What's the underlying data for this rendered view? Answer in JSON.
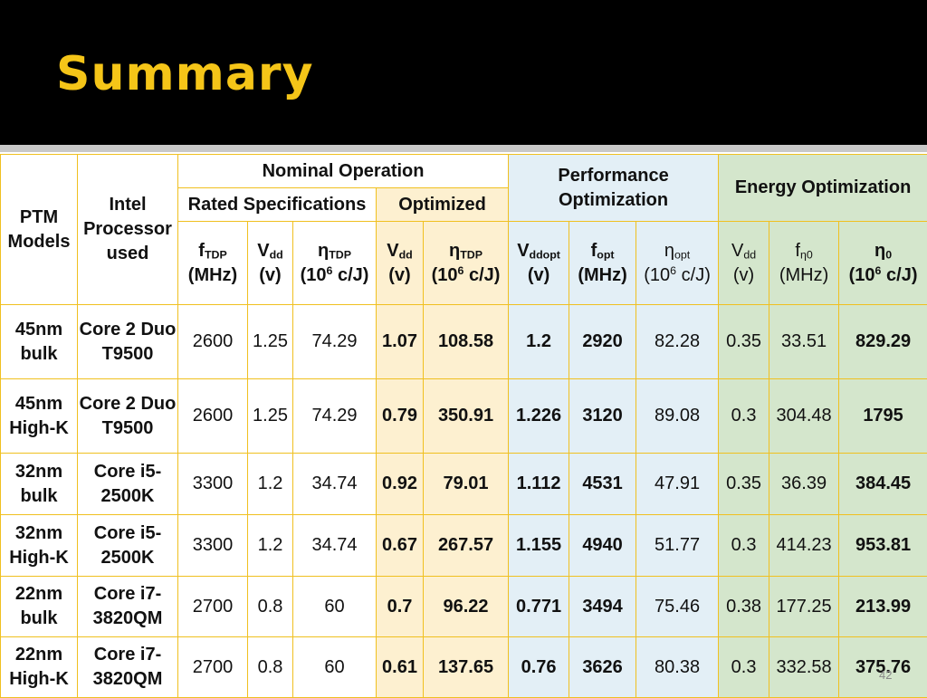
{
  "slide": {
    "title": "Summary",
    "page_number": "42"
  },
  "header": {
    "ptm_models": "PTM Models",
    "intel_processor": "Intel Processor used",
    "nominal_operation": "Nominal Operation",
    "rated_specifications": "Rated Specifications",
    "optimized": "Optimized",
    "performance_optimization": "Performance Optimization",
    "energy_optimization": "Energy Optimization",
    "columns": [
      {
        "sym": "f",
        "sub": "TDP",
        "unit": "(MHz)"
      },
      {
        "sym": "V",
        "sub": "dd",
        "unit": "(v)"
      },
      {
        "sym": "η",
        "sub": "TDP",
        "unit_pre": "(10",
        "unit_sup": "6",
        "unit_post": " c/J)"
      },
      {
        "sym": "V",
        "sub": "dd",
        "unit": "(v)"
      },
      {
        "sym": "η",
        "sub": "TDP",
        "unit_pre": "(10",
        "unit_sup": "6",
        "unit_post": " c/J)"
      },
      {
        "sym": "V",
        "sub": "ddopt",
        "unit": "(v)"
      },
      {
        "sym": "f",
        "sub": "opt",
        "unit": "(MHz)"
      },
      {
        "sym": "η",
        "sub": "opt",
        "unit_pre": "(10",
        "unit_sup": "6",
        "unit_post": " c/J)"
      },
      {
        "sym": "V",
        "sub": "dd",
        "unit": "(v)"
      },
      {
        "sym": "f",
        "sub": "η0",
        "unit": "(MHz)"
      },
      {
        "sym": "η",
        "sub": "0",
        "unit_pre": "(10",
        "unit_sup": "6",
        "unit_post": " c/J)"
      }
    ]
  },
  "rows": [
    {
      "model_l1": "45nm",
      "model_l2": "bulk",
      "proc_l1": "Core 2 Duo",
      "proc_l2": "T9500",
      "values": [
        "2600",
        "1.25",
        "74.29",
        "1.07",
        "108.58",
        "1.2",
        "2920",
        "82.28",
        "0.35",
        "33.51",
        "829.29"
      ]
    },
    {
      "model_l1": "45nm",
      "model_l2": "High-K",
      "proc_l1": "Core 2 Duo",
      "proc_l2": "T9500",
      "values": [
        "2600",
        "1.25",
        "74.29",
        "0.79",
        "350.91",
        "1.226",
        "3120",
        "89.08",
        "0.3",
        "304.48",
        "1795"
      ]
    },
    {
      "model_l1": "32nm",
      "model_l2": "bulk",
      "proc_l1": "Core i5-",
      "proc_l2": "2500K",
      "values": [
        "3300",
        "1.2",
        "34.74",
        "0.92",
        "79.01",
        "1.112",
        "4531",
        "47.91",
        "0.35",
        "36.39",
        "384.45"
      ]
    },
    {
      "model_l1": "32nm",
      "model_l2": "High-K",
      "proc_l1": "Core i5-",
      "proc_l2": "2500K",
      "values": [
        "3300",
        "1.2",
        "34.74",
        "0.67",
        "267.57",
        "1.155",
        "4940",
        "51.77",
        "0.3",
        "414.23",
        "953.81"
      ]
    },
    {
      "model_l1": "22nm",
      "model_l2": "bulk",
      "proc_l1": "Core i7-",
      "proc_l2": "3820QM",
      "values": [
        "2700",
        "0.8",
        "60",
        "0.7",
        "96.22",
        "0.771",
        "3494",
        "75.46",
        "0.38",
        "177.25",
        "213.99"
      ]
    },
    {
      "model_l1": "22nm",
      "model_l2": "High-K",
      "proc_l1": "Core i7-",
      "proc_l2": "3820QM",
      "values": [
        "2700",
        "0.8",
        "60",
        "0.61",
        "137.65",
        "0.76",
        "3626",
        "80.38",
        "0.3",
        "332.58",
        "375.76"
      ]
    }
  ],
  "colors": {
    "title": "#f5c518",
    "title_bar": "#000000",
    "border": "#f0c020",
    "optimized_fill": "#fdf0d0",
    "performance_fill": "#e3eff6",
    "energy_fill": "#d4e6cc"
  }
}
